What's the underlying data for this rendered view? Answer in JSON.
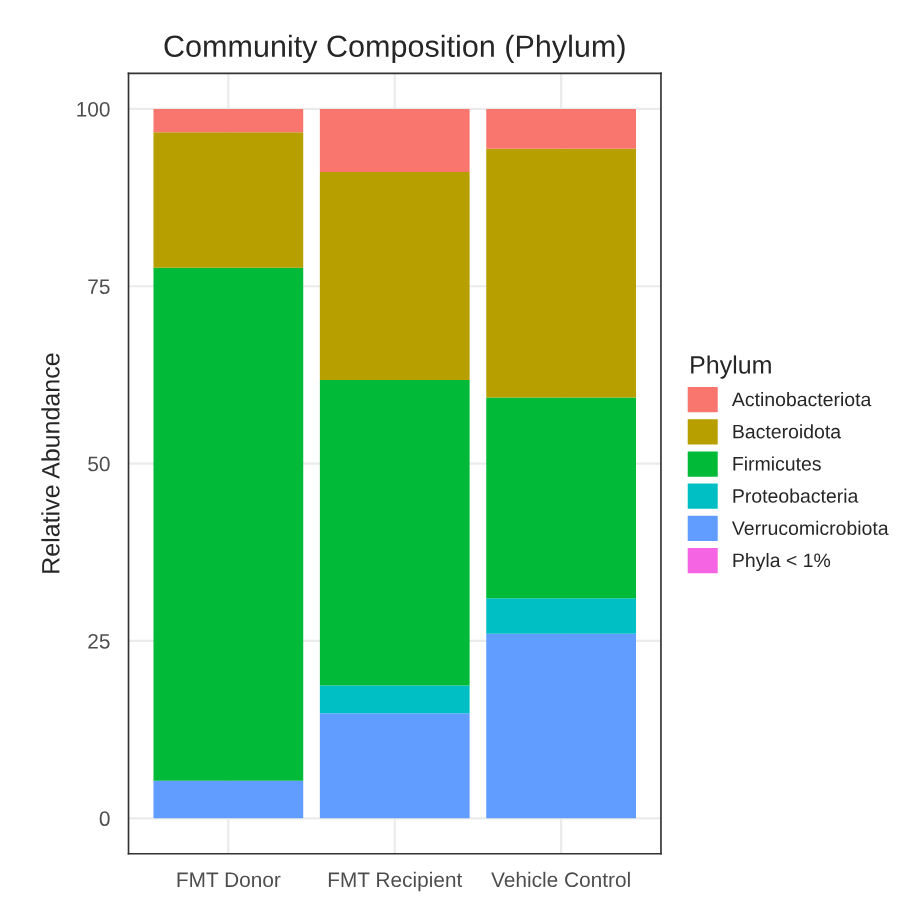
{
  "chart_data": {
    "type": "bar",
    "title": "Community Composition (Phylum)",
    "ylabel": "Relative Abundance",
    "legend_title": "Phylum",
    "categories": [
      "FMT Donor",
      "FMT Recipient",
      "Vehicle Control"
    ],
    "stacked": true,
    "series": [
      {
        "name": "Phyla < 1%",
        "color": "#f564e3",
        "values": [
          0,
          0,
          0
        ]
      },
      {
        "name": "Verrucomicrobiota",
        "color": "#619cff",
        "values": [
          5.3,
          14.8,
          26.0
        ]
      },
      {
        "name": "Proteobacteria",
        "color": "#00bfc4",
        "values": [
          0,
          3.9,
          5.0
        ]
      },
      {
        "name": "Firmicutes",
        "color": "#00ba38",
        "values": [
          72.3,
          43.1,
          28.3
        ]
      },
      {
        "name": "Bacteroidota",
        "color": "#b79f00",
        "values": [
          19.1,
          29.3,
          35.1
        ]
      },
      {
        "name": "Actinobacteriota",
        "color": "#f8766d",
        "values": [
          3.3,
          8.9,
          5.6
        ]
      }
    ],
    "ylim": [
      -5,
      105
    ],
    "yticks": [
      0,
      25,
      50,
      75,
      100
    ],
    "grid": true,
    "legend": "right"
  }
}
